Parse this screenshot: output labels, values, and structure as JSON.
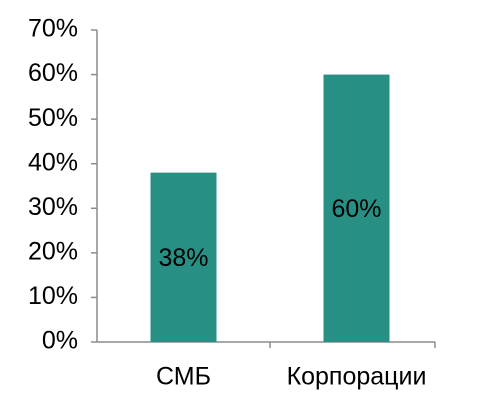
{
  "chart_data": {
    "type": "bar",
    "categories": [
      "СМБ",
      "Корпорации"
    ],
    "values": [
      38,
      60
    ],
    "value_labels": [
      "38%",
      "60%"
    ],
    "color": "#278f84",
    "ylim": [
      0,
      70
    ],
    "yticks": [
      {
        "value": 0,
        "label": "0%"
      },
      {
        "value": 10,
        "label": "10%"
      },
      {
        "value": 20,
        "label": "20%"
      },
      {
        "value": 30,
        "label": "30%"
      },
      {
        "value": 40,
        "label": "40%"
      },
      {
        "value": 50,
        "label": "50%"
      },
      {
        "value": 60,
        "label": "60%"
      },
      {
        "value": 70,
        "label": "70%"
      }
    ],
    "grid": false
  }
}
